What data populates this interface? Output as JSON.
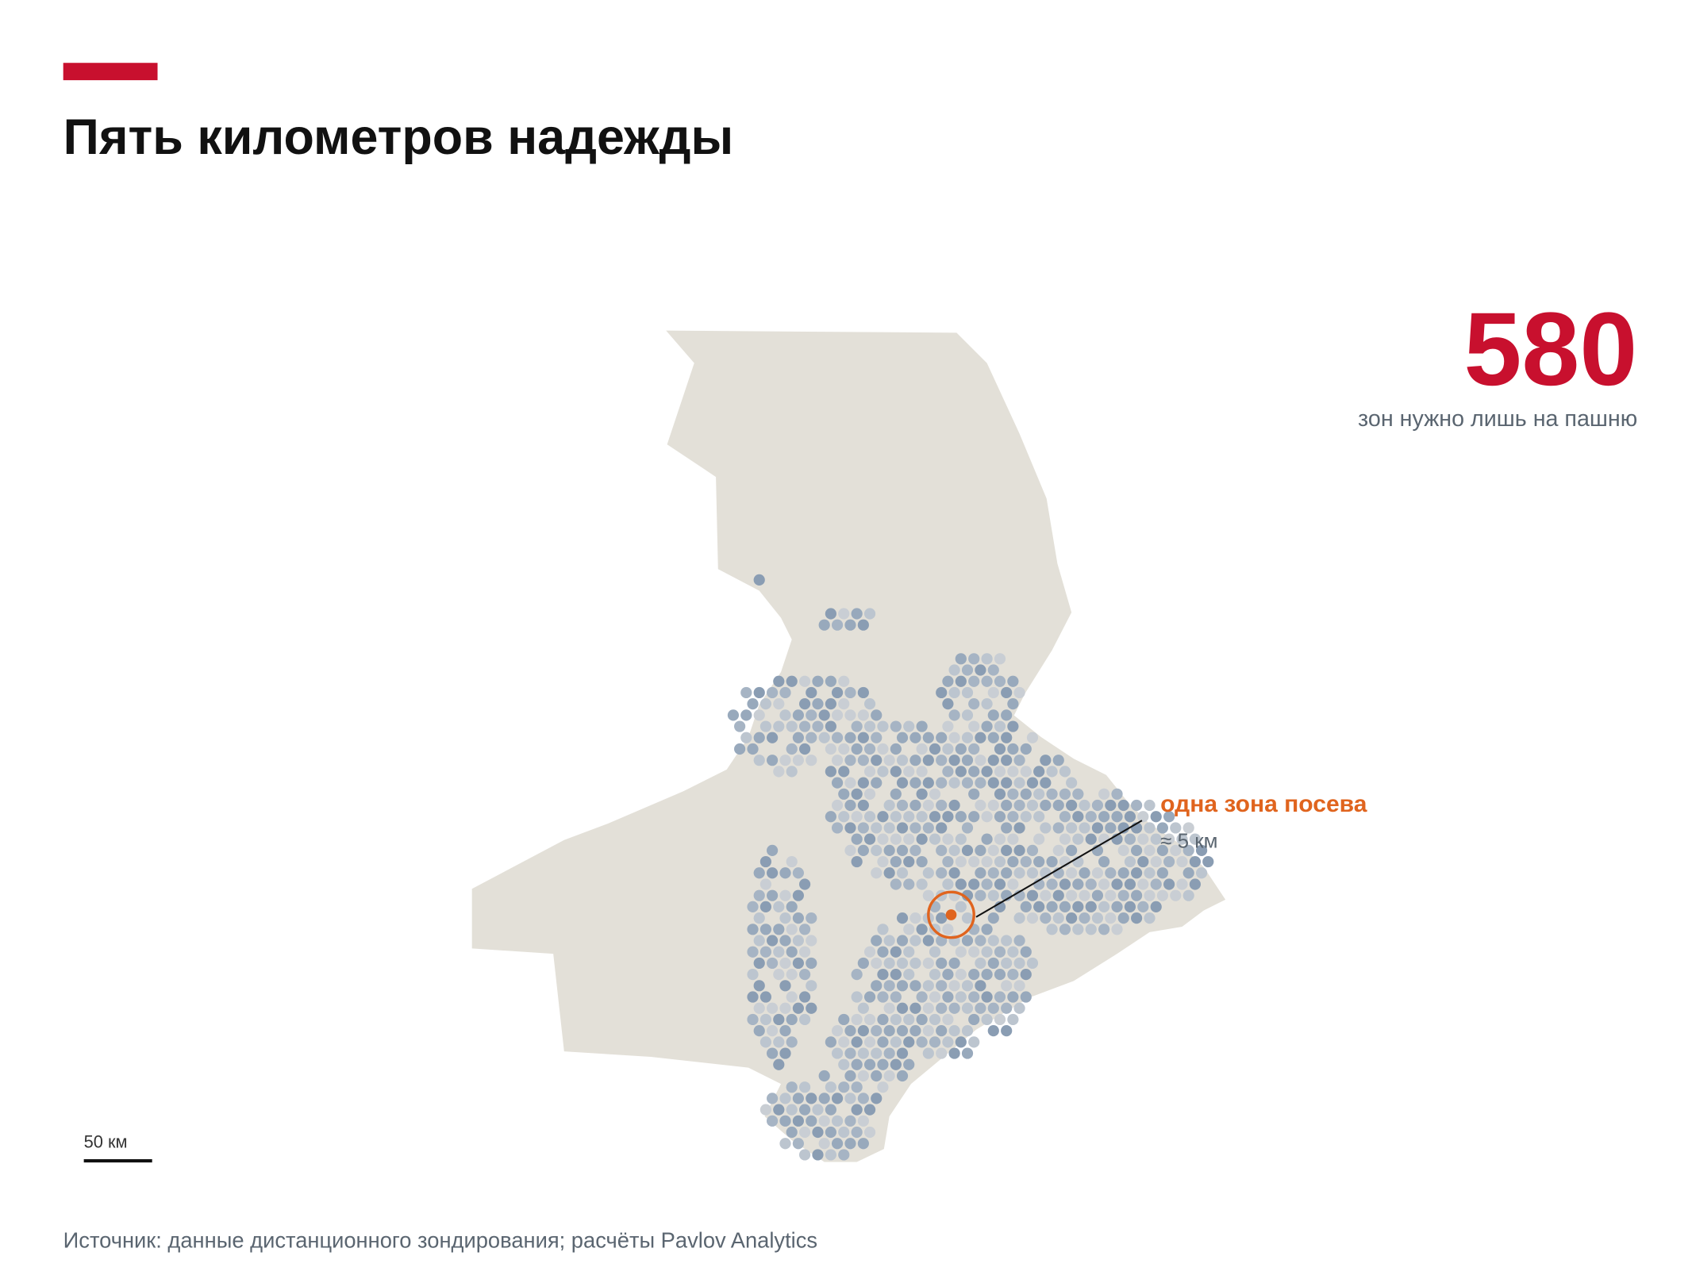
{
  "header": {
    "title": "Пять километров надежды"
  },
  "stat": {
    "number": "580",
    "caption": "зон нужно лишь на пашню"
  },
  "annotation": {
    "label": "одна зона посева",
    "size": "≈ 5 км"
  },
  "scale_bar": {
    "label": "50 км"
  },
  "source": "Источник: данные дистанционного зондирования; расчёты Pavlov Analytics"
}
